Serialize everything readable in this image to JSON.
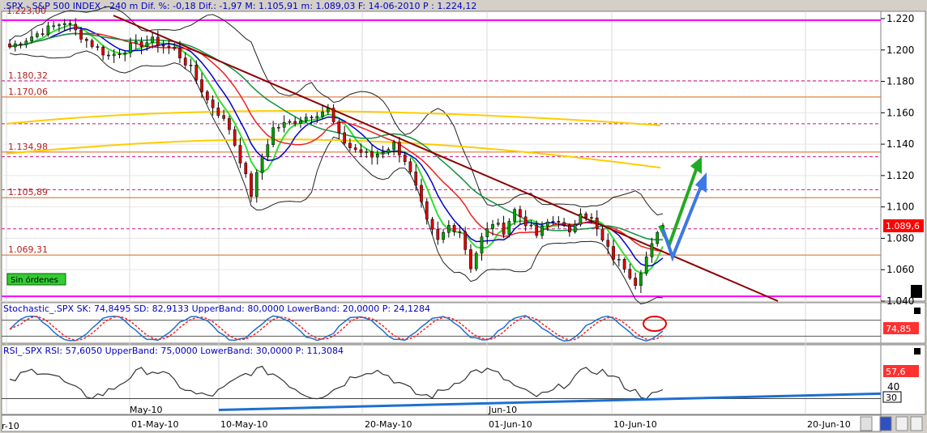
{
  "header": {
    "main": ".SPX - S&P 500 INDEX -  240 m Dif. %: -0,18 Dif.: -1,97 M: 1.105,91 m: 1.089,03 F: 14-06-2010 P : 1.224,12",
    "stoch": "Stochastic_.SPX SK: 74,8495 SD: 82,9133 UpperBand: 80,0000 LowerBand: 20,0000 P: 24,1284",
    "rsi": "RSI_.SPX RSI: 57,6050 UpperBand: 75,0000 LowerBand: 30,0000 P: 11,3084"
  },
  "chart_data": [
    {
      "type": "candlestick",
      "name": "price",
      "ylim": [
        1040,
        1228
      ],
      "price_ticks": [
        "1.220",
        "1.200",
        "1.180",
        "1.160",
        "1.140",
        "1.120",
        "1.100",
        "1.080",
        "1.060",
        "1.040"
      ],
      "current_price_label": "1.089,6",
      "top_cut_label": "1.223,00",
      "levels": [
        {
          "value": 1219,
          "color": "#ff00ff",
          "label": ""
        },
        {
          "value": 1180.32,
          "color": "#c71585",
          "label": "1.180,32"
        },
        {
          "value": 1170.06,
          "color": "#d2691e",
          "label": "1.170,06"
        },
        {
          "value": 1153,
          "color": "#c71585",
          "label": ""
        },
        {
          "value": 1134.98,
          "color": "#d2691e",
          "label": "1.134,98"
        },
        {
          "value": 1132,
          "color": "#c71585",
          "label": ""
        },
        {
          "value": 1111,
          "color": "#c71585",
          "label": ""
        },
        {
          "value": 1105.89,
          "color": "#d2691e",
          "label": "1.105,89"
        },
        {
          "value": 1086,
          "color": "#c71585",
          "label": ""
        },
        {
          "value": 1069.31,
          "color": "#d2691e",
          "label": "1.069,31"
        },
        {
          "value": 1043,
          "color": "#ff00ff",
          "label": ""
        }
      ],
      "badge_label": "Sin órdenes",
      "candle_count": 120
    },
    {
      "type": "line",
      "name": "stochastic",
      "ylim": [
        0,
        100
      ],
      "current_label": "74,85",
      "series": [
        {
          "name": "SK",
          "color": "#1e6fd0"
        },
        {
          "name": "SD",
          "color": "#ff2020"
        }
      ]
    },
    {
      "type": "line",
      "name": "rsi",
      "ylim": [
        10,
        90
      ],
      "ticks": [
        "40"
      ],
      "current_label": "57,6",
      "current_label2": "30",
      "trend_color": "#1e6fd0"
    }
  ],
  "x_axis": {
    "labels": [
      "r-10",
      "May-10",
      "01-May-10",
      "10-May-10",
      "20-May-10",
      "Jun-10",
      "01-Jun-10",
      "10-Jun-10",
      "20-Jun-10"
    ]
  }
}
